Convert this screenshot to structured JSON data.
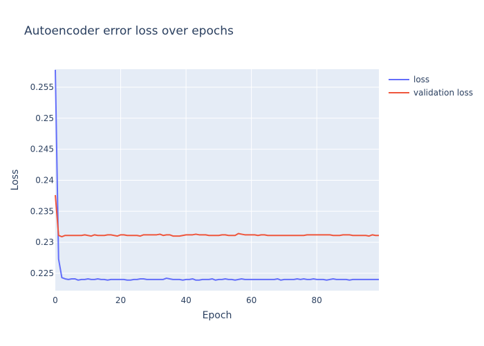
{
  "chart_data": {
    "type": "line",
    "title": "Autoencoder error loss over epochs",
    "xlabel": "Epoch",
    "ylabel": "Loss",
    "xlim": [
      0,
      99
    ],
    "ylim": [
      0.2222,
      0.2579
    ],
    "x_ticks": [
      0,
      20,
      40,
      60,
      80
    ],
    "y_ticks": [
      0.225,
      0.23,
      0.235,
      0.24,
      0.245,
      0.25,
      0.255
    ],
    "y_tick_labels": [
      "0.225",
      "0.23",
      "0.235",
      "0.24",
      "0.245",
      "0.25",
      "0.255"
    ],
    "grid": true,
    "legend_position": "top-right",
    "series": [
      {
        "name": "loss",
        "color": "#636efa",
        "x": [
          0,
          1,
          2,
          3,
          4,
          5,
          6,
          7,
          8,
          9,
          10,
          11,
          12,
          13,
          14,
          15,
          16,
          17,
          18,
          19,
          20,
          21,
          22,
          23,
          24,
          25,
          26,
          27,
          28,
          29,
          30,
          31,
          32,
          33,
          34,
          35,
          36,
          37,
          38,
          39,
          40,
          41,
          42,
          43,
          44,
          45,
          46,
          47,
          48,
          49,
          50,
          51,
          52,
          53,
          54,
          55,
          56,
          57,
          58,
          59,
          60,
          61,
          62,
          63,
          64,
          65,
          66,
          67,
          68,
          69,
          70,
          71,
          72,
          73,
          74,
          75,
          76,
          77,
          78,
          79,
          80,
          81,
          82,
          83,
          84,
          85,
          86,
          87,
          88,
          89,
          90,
          91,
          92,
          93,
          94,
          95,
          96,
          97,
          98,
          99
        ],
        "values": [
          0.2578,
          0.2273,
          0.2243,
          0.2241,
          0.224,
          0.2241,
          0.2241,
          0.2239,
          0.224,
          0.224,
          0.2241,
          0.224,
          0.224,
          0.2241,
          0.224,
          0.224,
          0.2239,
          0.224,
          0.224,
          0.224,
          0.224,
          0.224,
          0.2239,
          0.2239,
          0.224,
          0.224,
          0.2241,
          0.2241,
          0.224,
          0.224,
          0.224,
          0.224,
          0.224,
          0.224,
          0.2242,
          0.2241,
          0.224,
          0.224,
          0.224,
          0.2239,
          0.224,
          0.224,
          0.2241,
          0.2239,
          0.2239,
          0.224,
          0.224,
          0.224,
          0.2241,
          0.2239,
          0.224,
          0.224,
          0.2241,
          0.224,
          0.224,
          0.2239,
          0.224,
          0.2241,
          0.224,
          0.224,
          0.224,
          0.224,
          0.224,
          0.224,
          0.224,
          0.224,
          0.224,
          0.224,
          0.2241,
          0.2239,
          0.224,
          0.224,
          0.224,
          0.224,
          0.2241,
          0.224,
          0.2241,
          0.224,
          0.224,
          0.2241,
          0.224,
          0.224,
          0.224,
          0.2239,
          0.224,
          0.2241,
          0.224,
          0.224,
          0.224,
          0.224,
          0.2239,
          0.224,
          0.224,
          0.224,
          0.224,
          0.224,
          0.224,
          0.224,
          0.224,
          0.224
        ]
      },
      {
        "name": "validation loss",
        "color": "#ef553b",
        "x": [
          0,
          1,
          2,
          3,
          4,
          5,
          6,
          7,
          8,
          9,
          10,
          11,
          12,
          13,
          14,
          15,
          16,
          17,
          18,
          19,
          20,
          21,
          22,
          23,
          24,
          25,
          26,
          27,
          28,
          29,
          30,
          31,
          32,
          33,
          34,
          35,
          36,
          37,
          38,
          39,
          40,
          41,
          42,
          43,
          44,
          45,
          46,
          47,
          48,
          49,
          50,
          51,
          52,
          53,
          54,
          55,
          56,
          57,
          58,
          59,
          60,
          61,
          62,
          63,
          64,
          65,
          66,
          67,
          68,
          69,
          70,
          71,
          72,
          73,
          74,
          75,
          76,
          77,
          78,
          79,
          80,
          81,
          82,
          83,
          84,
          85,
          86,
          87,
          88,
          89,
          90,
          91,
          92,
          93,
          94,
          95,
          96,
          97,
          98,
          99
        ],
        "values": [
          0.2376,
          0.2311,
          0.2309,
          0.2311,
          0.2311,
          0.2311,
          0.2311,
          0.2311,
          0.2311,
          0.2312,
          0.2311,
          0.231,
          0.2312,
          0.2311,
          0.2311,
          0.2311,
          0.2312,
          0.2312,
          0.2311,
          0.231,
          0.2312,
          0.2312,
          0.2311,
          0.2311,
          0.2311,
          0.2311,
          0.231,
          0.2312,
          0.2312,
          0.2312,
          0.2312,
          0.2312,
          0.2313,
          0.2311,
          0.2312,
          0.2312,
          0.231,
          0.231,
          0.231,
          0.2311,
          0.2312,
          0.2312,
          0.2312,
          0.2313,
          0.2312,
          0.2312,
          0.2312,
          0.2311,
          0.2311,
          0.2311,
          0.2311,
          0.2312,
          0.2312,
          0.2311,
          0.2311,
          0.2311,
          0.2314,
          0.2313,
          0.2312,
          0.2312,
          0.2312,
          0.2312,
          0.2311,
          0.2312,
          0.2312,
          0.2311,
          0.2311,
          0.2311,
          0.2311,
          0.2311,
          0.2311,
          0.2311,
          0.2311,
          0.2311,
          0.2311,
          0.2311,
          0.2311,
          0.2312,
          0.2312,
          0.2312,
          0.2312,
          0.2312,
          0.2312,
          0.2312,
          0.2312,
          0.2311,
          0.2311,
          0.2311,
          0.2312,
          0.2312,
          0.2312,
          0.2311,
          0.2311,
          0.2311,
          0.2311,
          0.2311,
          0.231,
          0.2312,
          0.2311,
          0.2311
        ]
      }
    ]
  }
}
